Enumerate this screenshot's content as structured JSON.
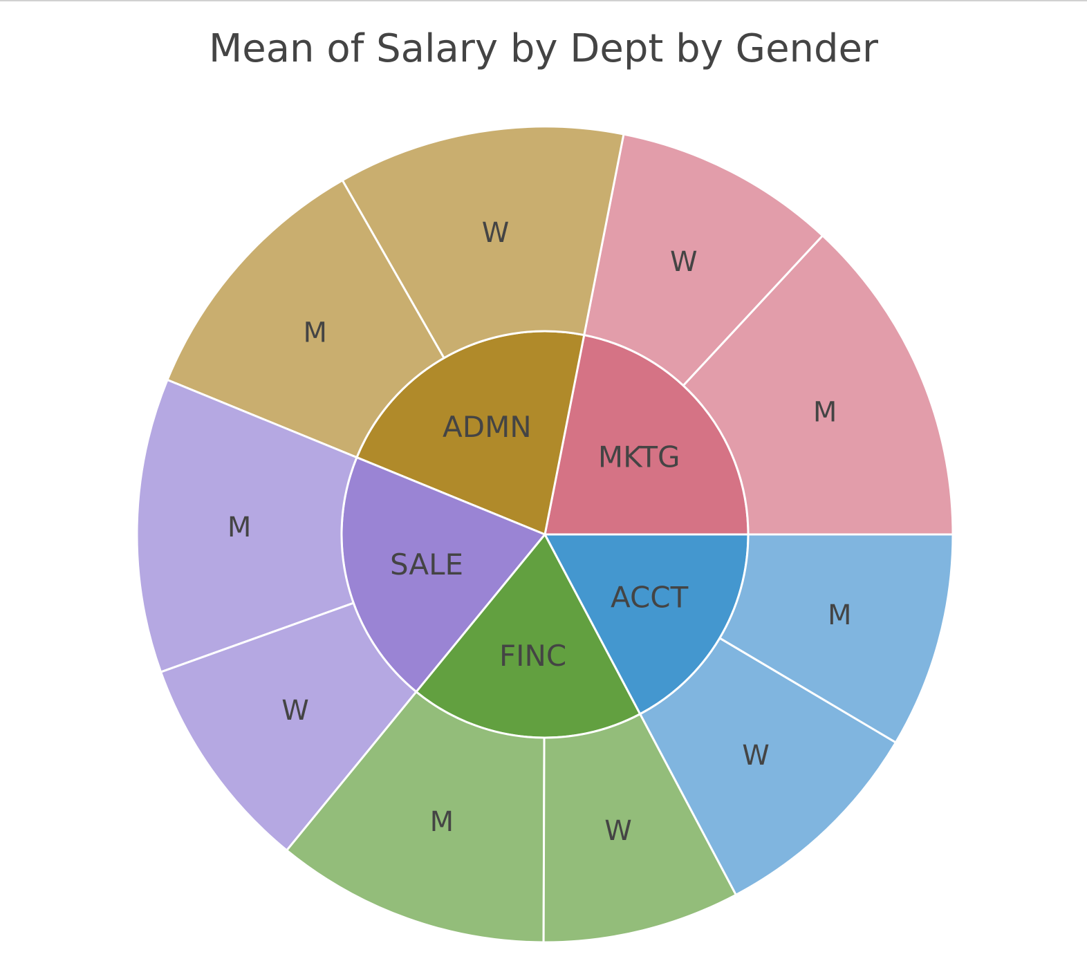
{
  "chart_data": {
    "type": "sunburst",
    "title": "Mean of Salary by Dept by Gender",
    "sector_stroke": "#ffffff",
    "label_color": "#444444",
    "departments": [
      {
        "label": "MKTG",
        "color": "#d57385",
        "child_color": "#e29daa",
        "children": [
          {
            "label": "M",
            "value": 64500
          },
          {
            "label": "W",
            "value": 43500
          }
        ]
      },
      {
        "label": "ADMN",
        "color": "#b08a2a",
        "child_color": "#c9ae6f",
        "children": [
          {
            "label": "W",
            "value": 56000
          },
          {
            "label": "M",
            "value": 52000
          }
        ]
      },
      {
        "label": "SALE",
        "color": "#9a84d4",
        "child_color": "#b5a8e2",
        "children": [
          {
            "label": "M",
            "value": 57500
          },
          {
            "label": "W",
            "value": 42500
          }
        ]
      },
      {
        "label": "FINC",
        "color": "#62a040",
        "child_color": "#93bd7a",
        "children": [
          {
            "label": "M",
            "value": 53500
          },
          {
            "label": "W",
            "value": 38500
          }
        ]
      },
      {
        "label": "ACCT",
        "color": "#4497cf",
        "child_color": "#80b5df",
        "children": [
          {
            "label": "W",
            "value": 43000
          },
          {
            "label": "M",
            "value": 42000
          }
        ]
      }
    ]
  }
}
